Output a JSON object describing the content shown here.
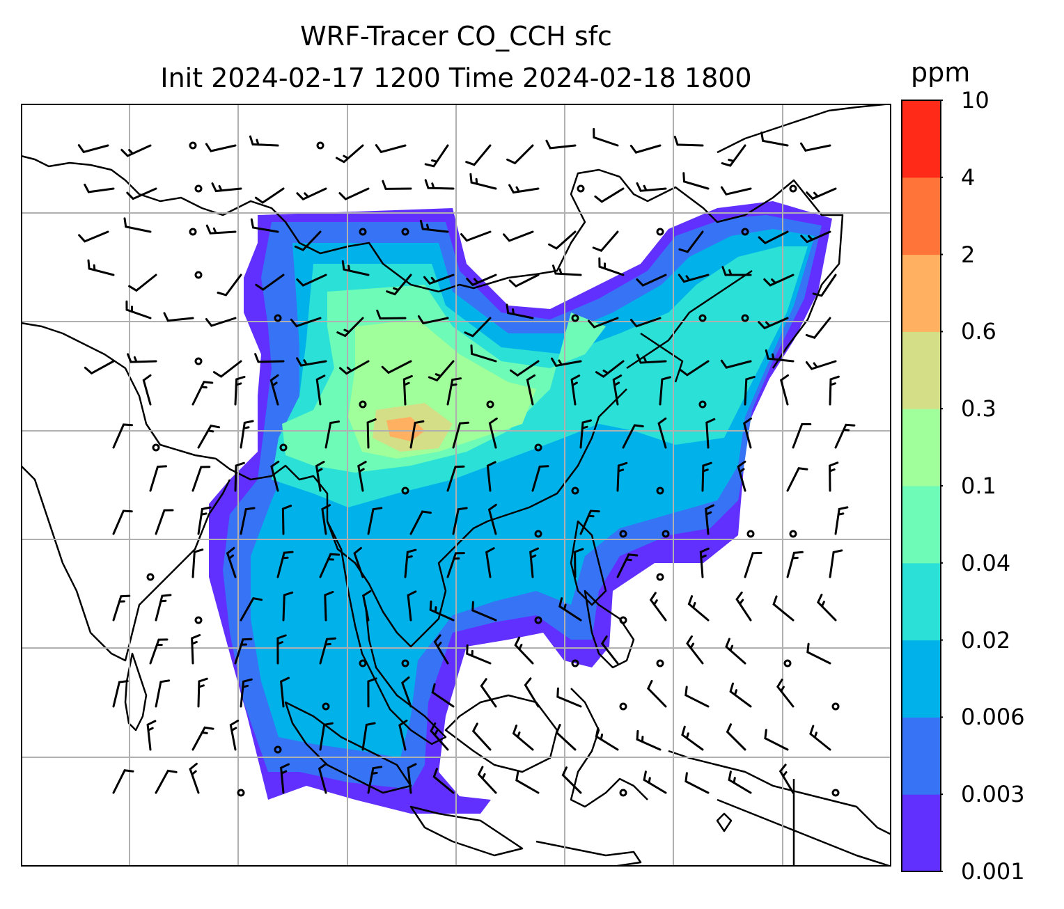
{
  "title": {
    "line1": "WRF-Tracer CO_CCH sfc",
    "line2": "Init 2024-02-17 1200 Time 2024-02-18 1800"
  },
  "colorbar": {
    "unit": "ppm",
    "ticks": [
      "0.001",
      "0.003",
      "0.006",
      "0.02",
      "0.04",
      "0.1",
      "0.3",
      "0.6",
      "2",
      "4",
      "10"
    ],
    "colors": [
      "#6130ff",
      "#3673f5",
      "#01b2ea",
      "#2be0d7",
      "#6dfbb7",
      "#a0fe9b",
      "#d3de87",
      "#ffb060",
      "#ff7439",
      "#ff2a17"
    ]
  },
  "map": {
    "region": "South and Southeast Asia",
    "coastline_color": "#000000",
    "gridline_color": "#b0b0b0",
    "wind_barb_color": "#000000",
    "calm_marker": "circle"
  }
}
